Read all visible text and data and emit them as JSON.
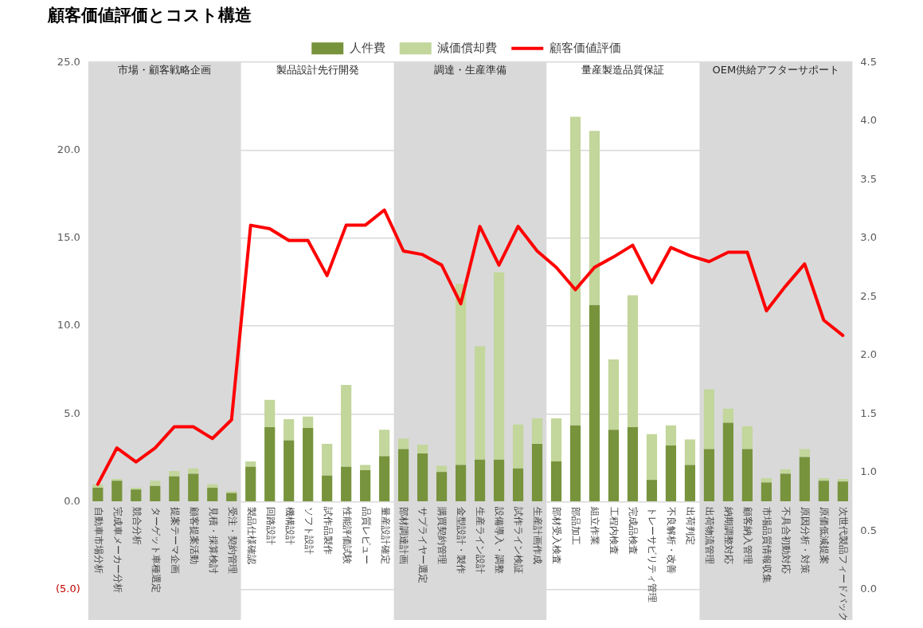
{
  "chart_data": {
    "type": "bar",
    "title": "顧客価値評価とコスト構造",
    "stacked": true,
    "categories": [
      "自動車市場分析",
      "完成車メーカー分析",
      "競合分析",
      "ターゲット車種選定",
      "提案テーマ企画",
      "顧客提案活動",
      "見積・採算検討",
      "受注・契約管理",
      "製品仕様確認",
      "回路設計",
      "機構設計",
      "ソフト設計",
      "試作品製作",
      "性能評価試験",
      "品質レビュー",
      "量産設計確定",
      "部材調達計画",
      "サプライヤー選定",
      "購買契約管理",
      "金型設計・製作",
      "生産ライン設計",
      "設備導入・調整",
      "試作ライン検証",
      "生産計画作成",
      "部材受入検査",
      "部品加工",
      "組立作業",
      "工程内検査",
      "完成品検査",
      "トレーサビリティ管理",
      "不良解析・改善",
      "出荷判定",
      "出荷物流管理",
      "納期調整対応",
      "顧客納入管理",
      "市場品質情報収集",
      "不具合初動対応",
      "原因分析・対策",
      "原価低減提案",
      "次世代製品フィードバック"
    ],
    "series": [
      {
        "name": "人件費",
        "color": "#77933c",
        "values": [
          0.8,
          1.2,
          0.7,
          0.9,
          1.45,
          1.6,
          0.8,
          0.5,
          2.0,
          4.25,
          3.5,
          4.2,
          1.5,
          2.0,
          1.8,
          2.6,
          3.0,
          2.75,
          1.7,
          2.1,
          2.4,
          2.4,
          1.9,
          3.3,
          2.3,
          4.35,
          11.2,
          4.1,
          4.25,
          1.25,
          3.2,
          2.1,
          3.0,
          4.5,
          3.0,
          1.1,
          1.6,
          2.55,
          1.2,
          1.15
        ]
      },
      {
        "name": "減価償却費",
        "color": "#c3d69b",
        "values": [
          0.2,
          0.1,
          0.1,
          0.3,
          0.3,
          0.3,
          0.2,
          0.1,
          0.3,
          1.55,
          1.2,
          0.65,
          1.8,
          4.65,
          0.3,
          1.5,
          0.6,
          0.5,
          0.35,
          10.3,
          6.45,
          10.65,
          2.5,
          1.45,
          2.45,
          17.55,
          9.9,
          4.0,
          7.5,
          2.6,
          1.15,
          1.45,
          3.4,
          0.8,
          1.3,
          0.25,
          0.25,
          0.45,
          0.15,
          0.15
        ]
      },
      {
        "name": "顧客価値評価",
        "type": "line",
        "axis": "y2",
        "color": "#ff0000",
        "values": [
          0.9,
          1.21,
          1.09,
          1.21,
          1.39,
          1.39,
          1.29,
          1.45,
          3.11,
          3.08,
          2.98,
          2.98,
          2.68,
          3.11,
          3.11,
          3.24,
          2.89,
          2.86,
          2.77,
          2.44,
          3.1,
          2.77,
          3.1,
          2.89,
          2.75,
          2.56,
          2.75,
          2.84,
          2.94,
          2.62,
          2.92,
          2.85,
          2.8,
          2.88,
          2.88,
          2.38,
          2.59,
          2.78,
          2.3,
          2.17
        ]
      }
    ],
    "ylim": [
      -5,
      25
    ],
    "yticks": [
      {
        "value": -5,
        "label": "(5.0)"
      },
      {
        "value": 0,
        "label": "0.0"
      },
      {
        "value": 5,
        "label": "5.0"
      },
      {
        "value": 10,
        "label": "10.0"
      },
      {
        "value": 15,
        "label": "15.0"
      },
      {
        "value": 20,
        "label": "20.0"
      },
      {
        "value": 25,
        "label": "25.0"
      }
    ],
    "y2lim": [
      0,
      4.5
    ],
    "y2ticks": [
      {
        "value": 0,
        "label": "0.0"
      },
      0.5,
      {
        "value": 1,
        "label": "1.0"
      },
      1.5,
      {
        "value": 2,
        "label": "2.0"
      },
      2.5,
      {
        "value": 3,
        "label": "3.0"
      },
      3.5,
      {
        "value": 4,
        "label": "4.0"
      },
      4.5
    ],
    "grid": "y",
    "legend": "top",
    "marker": "none",
    "line_style": "solid",
    "bands": [
      {
        "axis": "x",
        "from": "自動車市場分析",
        "to": "受注・契約管理",
        "label": "市場・顧客戦略企画",
        "color": "#d9d9d9"
      },
      {
        "axis": "x",
        "from": "製品仕様確認",
        "to": "量産設計確定",
        "label": "製品設計先行開発",
        "color": "#ffffff"
      },
      {
        "axis": "x",
        "from": "部材調達計画",
        "to": "生産計画作成",
        "label": "調達・生産準備",
        "color": "#d9d9d9"
      },
      {
        "axis": "x",
        "from": "部材受入検査",
        "to": "出荷判定",
        "label": "量産製造品質保証",
        "color": "#ffffff"
      },
      {
        "axis": "x",
        "from": "出荷物流管理",
        "to": "次世代製品フィードバック",
        "label": "OEM供給アフターサポート",
        "color": "#d9d9d9"
      }
    ]
  }
}
